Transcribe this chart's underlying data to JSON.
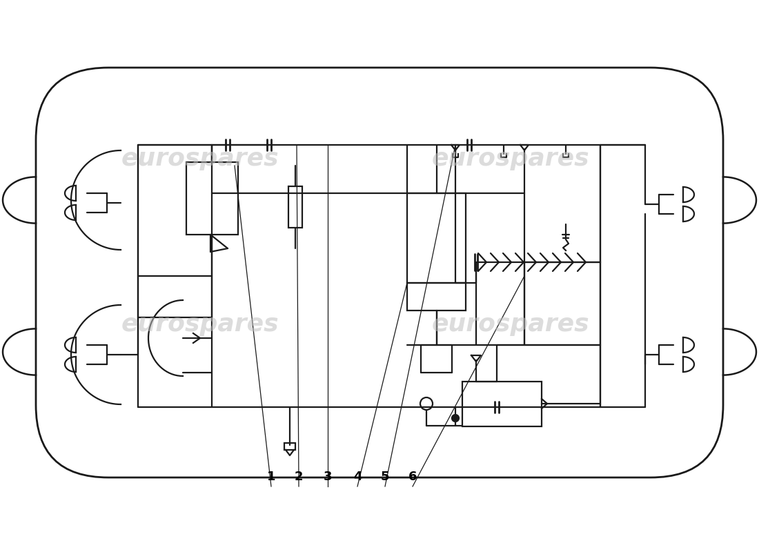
{
  "background_color": "#ffffff",
  "line_color": "#1a1a1a",
  "lw": 1.6,
  "label_numbers": [
    "1",
    "2",
    "3",
    "4",
    "5",
    "6"
  ],
  "watermark_text": "eurospares"
}
